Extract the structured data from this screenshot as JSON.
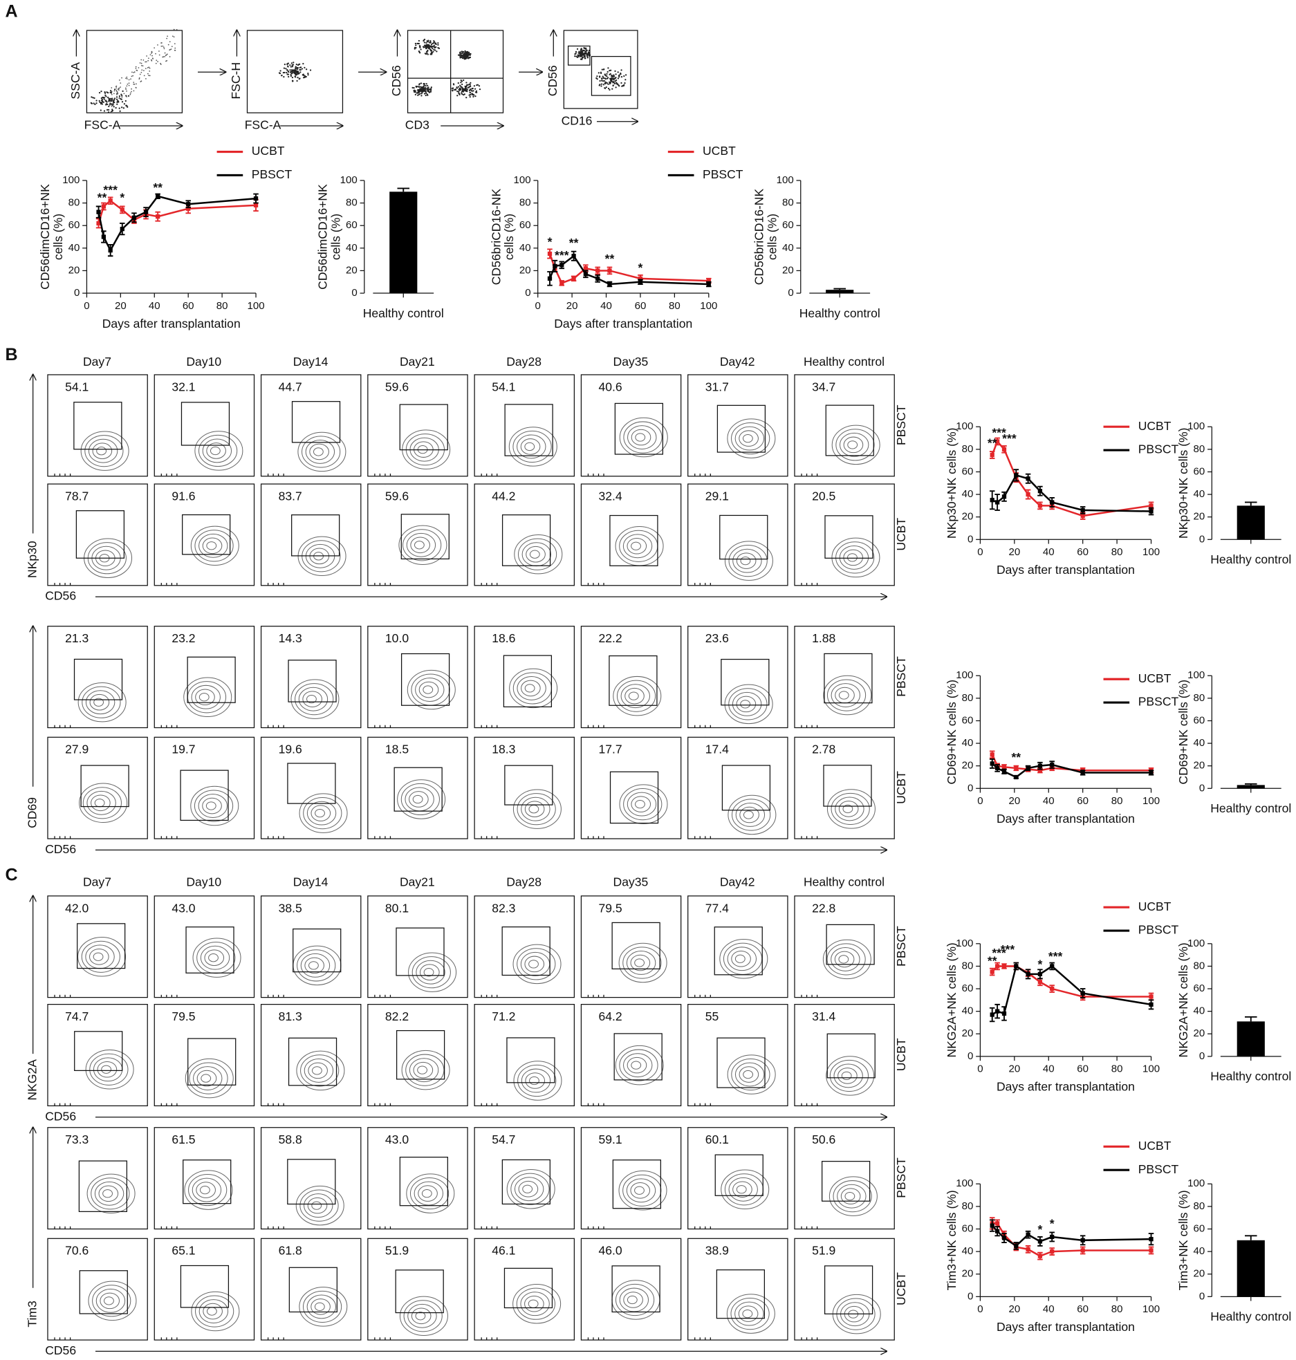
{
  "panel_labels": [
    "A",
    "B",
    "C"
  ],
  "gating": [
    {
      "y": "SSC-A",
      "x": "FSC-A"
    },
    {
      "y": "FSC-H",
      "x": "FSC-A"
    },
    {
      "y": "CD56",
      "x": "CD3"
    },
    {
      "y": "CD56",
      "x": "CD16"
    }
  ],
  "chart_data": [
    {
      "type": "line",
      "ylabel": [
        "CD56dimCD16+NK",
        "cells (%)"
      ],
      "xlabel": "Days after transplantation",
      "x": [
        7,
        10,
        14,
        21,
        28,
        35,
        42,
        60,
        100
      ],
      "xlim": [
        0,
        100
      ],
      "xticks": [
        0,
        20,
        40,
        60,
        80,
        100
      ],
      "ylim": [
        0,
        100
      ],
      "yticks": [
        0,
        20,
        40,
        60,
        80,
        100
      ],
      "series": [
        {
          "name": "UCBT",
          "color": "#e3262a",
          "values": [
            62,
            77,
            82,
            74,
            65,
            70,
            68,
            75,
            78
          ],
          "errors": [
            4,
            3,
            3,
            3,
            3,
            4,
            4,
            4,
            5
          ]
        },
        {
          "name": "PBSCT",
          "color": "#000000",
          "values": [
            72,
            50,
            38,
            57,
            67,
            72,
            86,
            79,
            84
          ],
          "errors": [
            5,
            5,
            5,
            5,
            4,
            4,
            2,
            3,
            4
          ]
        }
      ],
      "annotations": [
        {
          "text": "**",
          "x": 9,
          "y": 84
        },
        {
          "text": "***",
          "x": 14,
          "y": 91
        },
        {
          "text": "*",
          "x": 21,
          "y": 84
        },
        {
          "text": "**",
          "x": 42,
          "y": 93
        }
      ]
    },
    {
      "type": "bar",
      "ylabel": [
        "CD56dimCD16+NK",
        "cells (%)"
      ],
      "categories": [
        "Healthy control"
      ],
      "values": [
        90
      ],
      "errors": [
        3
      ],
      "color": "#000000",
      "ylim": [
        0,
        100
      ],
      "yticks": [
        0,
        20,
        40,
        60,
        80,
        100
      ]
    },
    {
      "type": "line",
      "ylabel": [
        "CD56briCD16-NK",
        "cells (%)"
      ],
      "xlabel": "Days after transplantation",
      "x": [
        7,
        10,
        14,
        21,
        28,
        35,
        42,
        60,
        100
      ],
      "xlim": [
        0,
        100
      ],
      "xticks": [
        0,
        20,
        40,
        60,
        80,
        100
      ],
      "ylim": [
        0,
        100
      ],
      "yticks": [
        0,
        20,
        40,
        60,
        80,
        100
      ],
      "series": [
        {
          "name": "UCBT",
          "color": "#e3262a",
          "values": [
            35,
            22,
            9,
            13,
            22,
            20,
            20,
            13,
            11
          ],
          "errors": [
            4,
            3,
            2,
            2,
            3,
            3,
            3,
            3,
            2
          ]
        },
        {
          "name": "PBSCT",
          "color": "#000000",
          "values": [
            13,
            24,
            25,
            33,
            17,
            13,
            8,
            10,
            8
          ],
          "errors": [
            6,
            5,
            3,
            4,
            3,
            3,
            2,
            2,
            2
          ]
        }
      ],
      "annotations": [
        {
          "text": "*",
          "x": 7,
          "y": 45
        },
        {
          "text": "***",
          "x": 14,
          "y": 33
        },
        {
          "text": "**",
          "x": 21,
          "y": 44
        },
        {
          "text": "**",
          "x": 42,
          "y": 30
        },
        {
          "text": "*",
          "x": 60,
          "y": 22
        }
      ]
    },
    {
      "type": "bar",
      "ylabel": [
        "CD56briCD16-NK",
        "cells (%)"
      ],
      "categories": [
        "Healthy control"
      ],
      "values": [
        3
      ],
      "errors": [
        1
      ],
      "color": "#000000",
      "ylim": [
        0,
        100
      ],
      "yticks": [
        0,
        20,
        40,
        60,
        80,
        100
      ]
    },
    {
      "type": "line",
      "ylabel": [
        "NKp30+NK cells (%)"
      ],
      "xlabel": "Days after transplantation",
      "x": [
        7,
        10,
        14,
        21,
        28,
        35,
        42,
        60,
        100
      ],
      "xlim": [
        0,
        100
      ],
      "xticks": [
        0,
        20,
        40,
        60,
        80,
        100
      ],
      "ylim": [
        0,
        100
      ],
      "yticks": [
        0,
        20,
        40,
        60,
        80,
        100
      ],
      "series": [
        {
          "name": "UCBT",
          "color": "#e3262a",
          "values": [
            75,
            87,
            80,
            55,
            40,
            30,
            30,
            21,
            30
          ],
          "errors": [
            3,
            3,
            3,
            4,
            4,
            3,
            3,
            3,
            3
          ]
        },
        {
          "name": "PBSCT",
          "color": "#000000",
          "values": [
            35,
            33,
            38,
            57,
            54,
            43,
            33,
            26,
            25
          ],
          "errors": [
            8,
            7,
            4,
            5,
            4,
            4,
            4,
            3,
            3
          ]
        }
      ],
      "annotations": [
        {
          "text": "**",
          "x": 7,
          "y": 85
        },
        {
          "text": "***",
          "x": 11,
          "y": 94
        },
        {
          "text": "***",
          "x": 17,
          "y": 89
        }
      ]
    },
    {
      "type": "bar",
      "ylabel": [
        "NKp30+NK cells (%)"
      ],
      "categories": [
        "Healthy control"
      ],
      "values": [
        30
      ],
      "errors": [
        3
      ],
      "color": "#000000",
      "ylim": [
        0,
        100
      ],
      "yticks": [
        0,
        20,
        40,
        60,
        80,
        100
      ]
    },
    {
      "type": "line",
      "ylabel": [
        "CD69+NK cells (%)"
      ],
      "xlabel": "Days after transplantation",
      "x": [
        7,
        10,
        14,
        21,
        28,
        35,
        42,
        60,
        100
      ],
      "xlim": [
        0,
        100
      ],
      "xticks": [
        0,
        20,
        40,
        60,
        80,
        100
      ],
      "ylim": [
        0,
        100
      ],
      "yticks": [
        0,
        20,
        40,
        60,
        80,
        100
      ],
      "series": [
        {
          "name": "UCBT",
          "color": "#e3262a",
          "values": [
            30,
            20,
            19,
            18,
            17,
            16,
            18,
            16,
            16
          ],
          "errors": [
            3,
            2,
            2,
            2,
            2,
            2,
            2,
            2,
            2
          ]
        },
        {
          "name": "PBSCT",
          "color": "#000000",
          "values": [
            22,
            18,
            15,
            10,
            18,
            20,
            21,
            14,
            14
          ],
          "errors": [
            4,
            3,
            2,
            1,
            2,
            3,
            3,
            2,
            2
          ]
        }
      ],
      "annotations": [
        {
          "text": "**",
          "x": 21,
          "y": 27
        }
      ]
    },
    {
      "type": "bar",
      "ylabel": [
        "CD69+NK cells (%)"
      ],
      "categories": [
        "Healthy control"
      ],
      "values": [
        3
      ],
      "errors": [
        1
      ],
      "color": "#000000",
      "ylim": [
        0,
        100
      ],
      "yticks": [
        0,
        20,
        40,
        60,
        80,
        100
      ]
    },
    {
      "type": "line",
      "ylabel": [
        "NKG2A+NK cells (%)"
      ],
      "xlabel": "Days after transplantation",
      "x": [
        7,
        10,
        14,
        21,
        28,
        35,
        42,
        60,
        100
      ],
      "xlim": [
        0,
        100
      ],
      "xticks": [
        0,
        20,
        40,
        60,
        80,
        100
      ],
      "ylim": [
        0,
        100
      ],
      "yticks": [
        0,
        20,
        40,
        60,
        80,
        100
      ],
      "series": [
        {
          "name": "UCBT",
          "color": "#e3262a",
          "values": [
            75,
            80,
            80,
            80,
            74,
            66,
            60,
            53,
            53
          ],
          "errors": [
            3,
            3,
            2,
            3,
            3,
            3,
            3,
            3,
            3
          ]
        },
        {
          "name": "PBSCT",
          "color": "#000000",
          "values": [
            37,
            40,
            38,
            80,
            73,
            73,
            80,
            56,
            46
          ],
          "errors": [
            6,
            6,
            6,
            3,
            4,
            4,
            3,
            4,
            4
          ]
        }
      ],
      "annotations": [
        {
          "text": "**",
          "x": 7,
          "y": 84
        },
        {
          "text": "***",
          "x": 11,
          "y": 91
        },
        {
          "text": "***",
          "x": 16,
          "y": 94
        },
        {
          "text": "*",
          "x": 35,
          "y": 81
        },
        {
          "text": "***",
          "x": 44,
          "y": 88
        }
      ]
    },
    {
      "type": "bar",
      "ylabel": [
        "NKG2A+NK cells (%)"
      ],
      "categories": [
        "Healthy control"
      ],
      "values": [
        31
      ],
      "errors": [
        4
      ],
      "color": "#000000",
      "ylim": [
        0,
        100
      ],
      "yticks": [
        0,
        20,
        40,
        60,
        80,
        100
      ]
    },
    {
      "type": "line",
      "ylabel": [
        "Tim3+NK cells (%)"
      ],
      "xlabel": "Days after transplantation",
      "x": [
        7,
        10,
        14,
        21,
        28,
        35,
        42,
        60,
        100
      ],
      "xlim": [
        0,
        100
      ],
      "xticks": [
        0,
        20,
        40,
        60,
        80,
        100
      ],
      "ylim": [
        0,
        100
      ],
      "yticks": [
        0,
        20,
        40,
        60,
        80,
        100
      ],
      "series": [
        {
          "name": "UCBT",
          "color": "#e3262a",
          "values": [
            65,
            65,
            55,
            44,
            42,
            36,
            40,
            41,
            41
          ],
          "errors": [
            5,
            3,
            3,
            3,
            3,
            3,
            3,
            3,
            3
          ]
        },
        {
          "name": "PBSCT",
          "color": "#000000",
          "values": [
            63,
            58,
            52,
            45,
            55,
            49,
            53,
            50,
            51
          ],
          "errors": [
            5,
            4,
            4,
            3,
            3,
            4,
            4,
            4,
            5
          ]
        }
      ],
      "annotations": [
        {
          "text": "*",
          "x": 35,
          "y": 59
        },
        {
          "text": "*",
          "x": 42,
          "y": 64
        }
      ]
    },
    {
      "type": "bar",
      "ylabel": [
        "Tim3+NK cells (%)"
      ],
      "categories": [
        "Healthy control"
      ],
      "values": [
        50
      ],
      "errors": [
        4
      ],
      "color": "#000000",
      "ylim": [
        0,
        100
      ],
      "yticks": [
        0,
        20,
        40,
        60,
        80,
        100
      ]
    }
  ],
  "flow_sections": [
    {
      "columns": [
        "Day7",
        "Day10",
        "Day14",
        "Day21",
        "Day28",
        "Day35",
        "Day42",
        "Healthy control"
      ],
      "blocks": [
        {
          "marker": "NKp30",
          "x_marker": "CD56",
          "rows": [
            {
              "group": "PBSCT",
              "values": [
                "54.1",
                "32.1",
                "44.7",
                "59.6",
                "54.1",
                "40.6",
                "31.7",
                "34.7"
              ]
            },
            {
              "group": "UCBT",
              "values": [
                "78.7",
                "91.6",
                "83.7",
                "59.6",
                "44.2",
                "32.4",
                "29.1",
                "20.5"
              ]
            }
          ]
        },
        {
          "marker": "CD69",
          "x_marker": "CD56",
          "rows": [
            {
              "group": "PBSCT",
              "values": [
                "21.3",
                "23.2",
                "14.3",
                "10.0",
                "18.6",
                "22.2",
                "23.6",
                "1.88"
              ]
            },
            {
              "group": "UCBT",
              "values": [
                "27.9",
                "19.7",
                "19.6",
                "18.5",
                "18.3",
                "17.7",
                "17.4",
                "2.78"
              ]
            }
          ]
        }
      ]
    },
    {
      "columns": [
        "Day7",
        "Day10",
        "Day14",
        "Day21",
        "Day28",
        "Day35",
        "Day42",
        "Healthy control"
      ],
      "blocks": [
        {
          "marker": "NKG2A",
          "x_marker": "CD56",
          "rows": [
            {
              "group": "PBSCT",
              "values": [
                "42.0",
                "43.0",
                "38.5",
                "80.1",
                "82.3",
                "79.5",
                "77.4",
                "22.8"
              ]
            },
            {
              "group": "UCBT",
              "values": [
                "74.7",
                "79.5",
                "81.3",
                "82.2",
                "71.2",
                "64.2",
                "55",
                "31.4"
              ]
            }
          ]
        },
        {
          "marker": "Tim3",
          "x_marker": "CD56",
          "rows": [
            {
              "group": "PBSCT",
              "values": [
                "73.3",
                "61.5",
                "58.8",
                "43.0",
                "54.7",
                "59.1",
                "60.1",
                "50.6"
              ]
            },
            {
              "group": "UCBT",
              "values": [
                "70.6",
                "65.1",
                "61.8",
                "51.9",
                "46.1",
                "46.0",
                "38.9",
                "51.9"
              ]
            }
          ]
        }
      ]
    }
  ]
}
